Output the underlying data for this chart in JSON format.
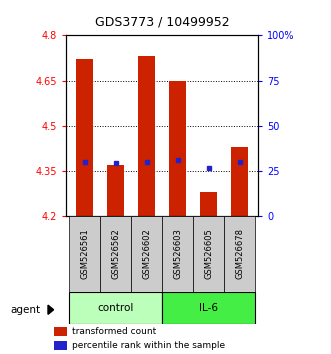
{
  "title": "GDS3773 / 10499952",
  "samples": [
    "GSM526561",
    "GSM526562",
    "GSM526602",
    "GSM526603",
    "GSM526605",
    "GSM526678"
  ],
  "groups": [
    "control",
    "control",
    "control",
    "IL-6",
    "IL-6",
    "IL-6"
  ],
  "bar_bottoms": [
    4.2,
    4.2,
    4.2,
    4.2,
    4.2,
    4.2
  ],
  "bar_tops": [
    4.72,
    4.37,
    4.73,
    4.65,
    4.28,
    4.43
  ],
  "percentile_values": [
    4.38,
    4.375,
    4.38,
    4.385,
    4.36,
    4.38
  ],
  "ylim": [
    4.2,
    4.8
  ],
  "yticks": [
    4.2,
    4.35,
    4.5,
    4.65,
    4.8
  ],
  "ytick_labels": [
    "4.2",
    "4.35",
    "4.5",
    "4.65",
    "4.8"
  ],
  "y2tick_labels": [
    "0",
    "25",
    "50",
    "75",
    "100%"
  ],
  "hlines": [
    4.35,
    4.5,
    4.65
  ],
  "bar_color": "#cc2200",
  "percentile_color": "#2222cc",
  "control_color": "#bbffbb",
  "il6_color": "#44ee44",
  "sample_bg_color": "#cccccc",
  "legend_items": [
    "transformed count",
    "percentile rank within the sample"
  ],
  "group_label": "agent",
  "bar_width": 0.55
}
